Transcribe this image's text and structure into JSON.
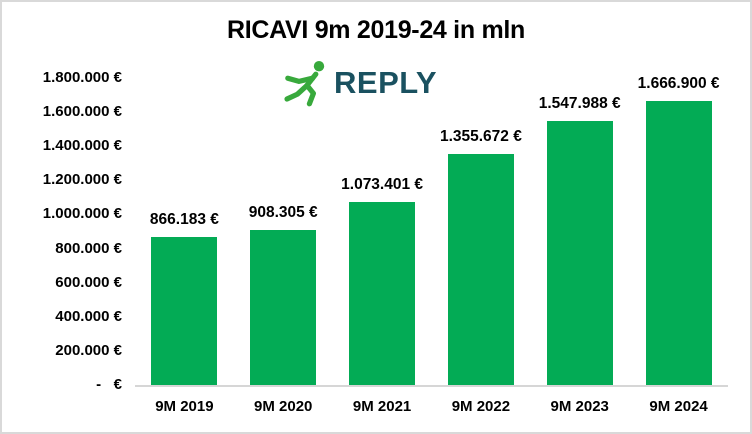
{
  "logo": {
    "text": "REPLY",
    "icon": "runner-icon",
    "text_color": "#1A5160",
    "runner_color": "#38A93C"
  },
  "chart_data": {
    "type": "bar",
    "title": "RICAVI 9m 2019-24 in mln",
    "xlabel": "",
    "ylabel": "",
    "categories": [
      "9M 2019",
      "9M 2020",
      "9M 2021",
      "9M 2022",
      "9M 2023",
      "9M 2024"
    ],
    "values": [
      866183,
      908305,
      1073401,
      1355672,
      1547988,
      1666900
    ],
    "data_labels": [
      "866.183 €",
      "908.305 €",
      "1.073.401 €",
      "1.355.672 €",
      "1.547.988 €",
      "1.666.900 €"
    ],
    "y_ticks": [
      {
        "value": 0,
        "label": "-   €"
      },
      {
        "value": 200000,
        "label": "200.000 €"
      },
      {
        "value": 400000,
        "label": "400.000 €"
      },
      {
        "value": 600000,
        "label": "600.000 €"
      },
      {
        "value": 800000,
        "label": "800.000 €"
      },
      {
        "value": 1000000,
        "label": "1.000.000 €"
      },
      {
        "value": 1200000,
        "label": "1.200.000 €"
      },
      {
        "value": 1400000,
        "label": "1.400.000 €"
      },
      {
        "value": 1600000,
        "label": "1.600.000 €"
      },
      {
        "value": 1800000,
        "label": "1.800.000 €"
      }
    ],
    "ylim": [
      0,
      1800000
    ],
    "grid": false,
    "legend": null,
    "bar_color": "#03AB55",
    "axis_line_color": "#D6D6D6",
    "text_color": "#000000"
  }
}
